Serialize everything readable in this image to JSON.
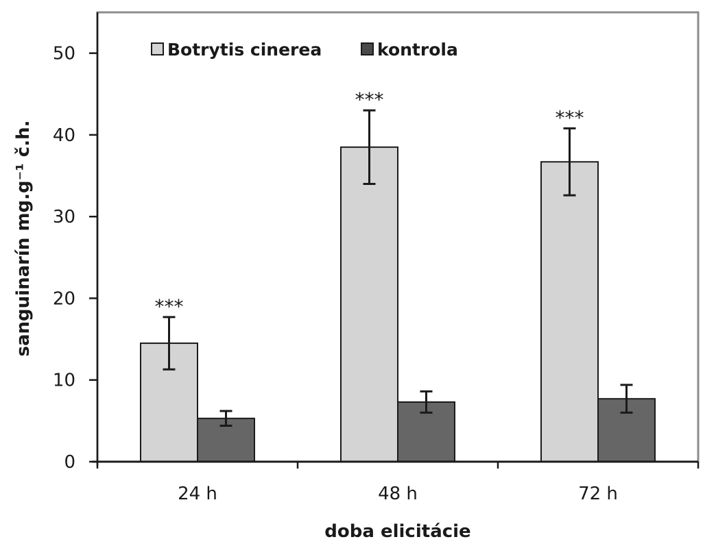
{
  "chart_data": {
    "type": "bar",
    "categories": [
      "24 h",
      "48 h",
      "72 h"
    ],
    "series": [
      {
        "name": "Botrytis cinerea",
        "color": "#d4d4d4",
        "values": [
          14.5,
          38.5,
          36.7
        ],
        "errors": [
          3.2,
          4.5,
          4.1
        ],
        "significance": [
          "***",
          "***",
          "***"
        ]
      },
      {
        "name": "kontrola",
        "color": "#666666",
        "values": [
          5.3,
          7.3,
          7.7
        ],
        "errors": [
          0.9,
          1.3,
          1.7
        ],
        "significance": [
          "",
          "",
          ""
        ]
      }
    ],
    "xlabel": "doba elicitácie",
    "ylabel": "sanguinarín mg.g⁻¹ č.h.",
    "ylim": [
      0,
      55
    ],
    "yticks": [
      0,
      10,
      20,
      30,
      40,
      50
    ],
    "grid": false,
    "legend_position": "top-left"
  }
}
